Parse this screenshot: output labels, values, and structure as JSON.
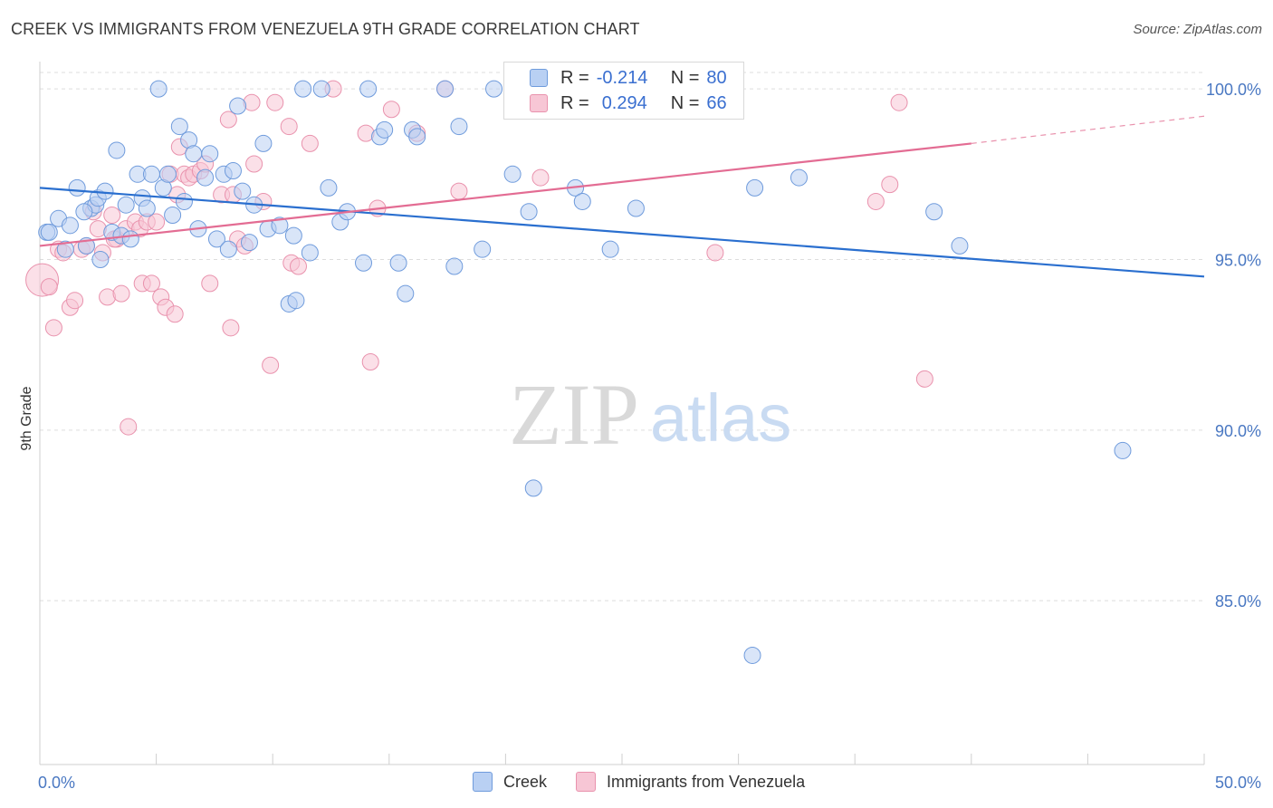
{
  "header": {
    "title": "CREEK VS IMMIGRANTS FROM VENEZUELA 9TH GRADE CORRELATION CHART",
    "source": "Source: ZipAtlas.com"
  },
  "watermark": {
    "zip": "ZIP",
    "atlas": "atlas"
  },
  "legend_top": {
    "rows": [
      {
        "r_label": "R =",
        "r_value": "-0.214",
        "n_label": "N =",
        "n_value": "80"
      },
      {
        "r_label": "R =",
        "r_value": "0.294",
        "n_label": "N =",
        "n_value": "66"
      }
    ]
  },
  "legend_bottom": {
    "series1": "Creek",
    "series2": "Immigrants from Venezuela"
  },
  "colors": {
    "creek_fill": "#b9d0f3",
    "creek_stroke": "#6f9bdc",
    "creek_line": "#2a6fcf",
    "ven_fill": "#f7c6d5",
    "ven_stroke": "#e992ad",
    "ven_line": "#e36c93",
    "tick_text": "#4a78c2",
    "grid": "#dddddd"
  },
  "chart_data": {
    "type": "scatter",
    "title": "CREEK VS IMMIGRANTS FROM VENEZUELA 9TH GRADE CORRELATION CHART",
    "xlabel": "",
    "ylabel": "9th Grade",
    "xlim": [
      0,
      50
    ],
    "ylim": [
      80.2,
      100.8
    ],
    "x_ticks": [
      "0.0%",
      "50.0%"
    ],
    "y_ticks": [
      {
        "value": 100,
        "label": "100.0%"
      },
      {
        "value": 95,
        "label": "95.0%"
      },
      {
        "value": 90,
        "label": "90.0%"
      },
      {
        "value": 85,
        "label": "85.0%"
      }
    ],
    "grid": true,
    "legend": "bottom",
    "series": [
      {
        "name": "Creek",
        "R": -0.214,
        "N": 80,
        "trend": {
          "x": [
            0,
            50
          ],
          "y": [
            97.1,
            94.5
          ]
        },
        "points": [
          [
            0.3,
            95.8
          ],
          [
            0.8,
            96.2
          ],
          [
            1.1,
            95.3
          ],
          [
            1.3,
            96.0
          ],
          [
            1.6,
            97.1
          ],
          [
            2.0,
            95.4
          ],
          [
            2.2,
            96.5
          ],
          [
            2.4,
            96.6
          ],
          [
            2.5,
            96.8
          ],
          [
            2.6,
            95.0
          ],
          [
            2.8,
            97.0
          ],
          [
            3.1,
            95.8
          ],
          [
            3.3,
            98.2
          ],
          [
            3.5,
            95.7
          ],
          [
            3.7,
            96.6
          ],
          [
            3.9,
            95.6
          ],
          [
            4.2,
            97.5
          ],
          [
            4.4,
            96.8
          ],
          [
            4.6,
            96.5
          ],
          [
            4.8,
            97.5
          ],
          [
            5.1,
            100.0
          ],
          [
            5.3,
            97.1
          ],
          [
            5.5,
            97.5
          ],
          [
            5.7,
            96.3
          ],
          [
            6.0,
            98.9
          ],
          [
            6.2,
            96.7
          ],
          [
            6.4,
            98.5
          ],
          [
            6.6,
            98.1
          ],
          [
            6.8,
            95.9
          ],
          [
            7.1,
            97.4
          ],
          [
            7.3,
            98.1
          ],
          [
            7.6,
            95.6
          ],
          [
            7.9,
            97.5
          ],
          [
            8.1,
            95.3
          ],
          [
            8.3,
            97.6
          ],
          [
            8.5,
            99.5
          ],
          [
            8.7,
            97.0
          ],
          [
            9.0,
            95.5
          ],
          [
            9.2,
            96.6
          ],
          [
            9.6,
            98.4
          ],
          [
            9.8,
            95.9
          ],
          [
            10.3,
            96.0
          ],
          [
            10.7,
            93.7
          ],
          [
            10.9,
            95.7
          ],
          [
            11.0,
            93.8
          ],
          [
            11.3,
            100.0
          ],
          [
            11.6,
            95.2
          ],
          [
            12.1,
            100.0
          ],
          [
            12.4,
            97.1
          ],
          [
            12.9,
            96.1
          ],
          [
            13.2,
            96.4
          ],
          [
            13.9,
            94.9
          ],
          [
            14.1,
            100.0
          ],
          [
            14.6,
            98.6
          ],
          [
            14.8,
            98.8
          ],
          [
            15.4,
            94.9
          ],
          [
            15.7,
            94.0
          ],
          [
            16.0,
            98.8
          ],
          [
            16.2,
            98.6
          ],
          [
            17.4,
            100.0
          ],
          [
            17.8,
            94.8
          ],
          [
            18.0,
            98.9
          ],
          [
            19.0,
            95.3
          ],
          [
            19.5,
            100.0
          ],
          [
            20.3,
            97.5
          ],
          [
            21.0,
            96.4
          ],
          [
            21.2,
            88.3
          ],
          [
            22.0,
            100.0
          ],
          [
            23.0,
            97.1
          ],
          [
            23.3,
            96.7
          ],
          [
            24.5,
            95.3
          ],
          [
            25.6,
            96.5
          ],
          [
            30.6,
            83.4
          ],
          [
            30.7,
            97.1
          ],
          [
            32.6,
            97.4
          ],
          [
            38.4,
            96.4
          ],
          [
            39.5,
            95.4
          ],
          [
            46.5,
            89.4
          ],
          [
            0.4,
            95.8
          ],
          [
            1.9,
            96.4
          ]
        ]
      },
      {
        "name": "Immigrants from Venezuela",
        "R": 0.294,
        "N": 66,
        "trend": {
          "x": [
            0,
            40
          ],
          "y": [
            95.4,
            98.4
          ]
        },
        "trend_dash": {
          "x": [
            40,
            50
          ],
          "y": [
            98.4,
            99.2
          ]
        },
        "points": [
          [
            0.1,
            94.4
          ],
          [
            0.4,
            94.2
          ],
          [
            0.6,
            93.0
          ],
          [
            0.8,
            95.3
          ],
          [
            1.0,
            95.2
          ],
          [
            1.3,
            93.6
          ],
          [
            1.5,
            93.8
          ],
          [
            1.8,
            95.3
          ],
          [
            2.0,
            95.4
          ],
          [
            2.3,
            96.4
          ],
          [
            2.5,
            95.9
          ],
          [
            2.7,
            95.2
          ],
          [
            2.9,
            93.9
          ],
          [
            3.1,
            96.3
          ],
          [
            3.3,
            95.6
          ],
          [
            3.5,
            94.0
          ],
          [
            3.7,
            95.9
          ],
          [
            3.8,
            90.1
          ],
          [
            4.1,
            96.1
          ],
          [
            4.3,
            95.9
          ],
          [
            4.4,
            94.3
          ],
          [
            4.6,
            96.1
          ],
          [
            4.8,
            94.3
          ],
          [
            5.0,
            96.1
          ],
          [
            5.2,
            93.9
          ],
          [
            5.4,
            93.6
          ],
          [
            5.6,
            97.5
          ],
          [
            5.8,
            93.4
          ],
          [
            6.0,
            98.3
          ],
          [
            6.2,
            97.5
          ],
          [
            6.4,
            97.4
          ],
          [
            6.6,
            97.5
          ],
          [
            6.9,
            97.6
          ],
          [
            7.1,
            97.8
          ],
          [
            7.3,
            94.3
          ],
          [
            7.8,
            96.9
          ],
          [
            8.1,
            99.1
          ],
          [
            8.2,
            93.0
          ],
          [
            8.5,
            95.6
          ],
          [
            8.8,
            95.4
          ],
          [
            9.1,
            99.6
          ],
          [
            9.2,
            97.8
          ],
          [
            9.6,
            96.7
          ],
          [
            9.9,
            91.9
          ],
          [
            10.1,
            99.6
          ],
          [
            10.7,
            98.9
          ],
          [
            10.8,
            94.9
          ],
          [
            11.1,
            94.8
          ],
          [
            11.6,
            98.4
          ],
          [
            12.6,
            100.0
          ],
          [
            14.0,
            98.7
          ],
          [
            14.2,
            92.0
          ],
          [
            14.5,
            96.5
          ],
          [
            15.1,
            99.4
          ],
          [
            16.2,
            98.7
          ],
          [
            17.4,
            100.0
          ],
          [
            18.0,
            97.0
          ],
          [
            21.5,
            97.4
          ],
          [
            29.0,
            95.2
          ],
          [
            35.9,
            96.7
          ],
          [
            36.5,
            97.2
          ],
          [
            36.9,
            99.6
          ],
          [
            38.0,
            91.5
          ],
          [
            3.2,
            95.6
          ],
          [
            5.9,
            96.9
          ],
          [
            8.3,
            96.9
          ]
        ]
      }
    ]
  }
}
